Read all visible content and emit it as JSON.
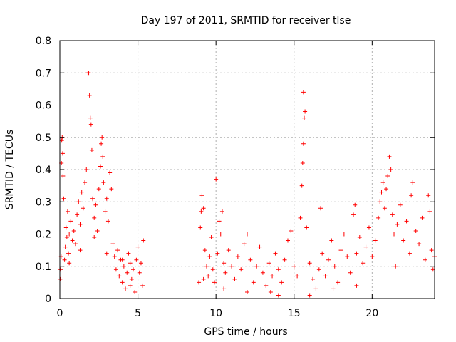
{
  "chart_data": {
    "type": "scatter",
    "title": "Day 197 of 2011, SRMTID for receiver tlse",
    "xlabel": "GPS time / hours",
    "ylabel": "SRMTID / TECUs",
    "xlim": [
      0,
      24
    ],
    "ylim": [
      0,
      0.8
    ],
    "x_ticks": [
      0,
      5,
      10,
      15,
      20
    ],
    "y_ticks": [
      0,
      0.1,
      0.2,
      0.3,
      0.4,
      0.5,
      0.6,
      0.7,
      0.8
    ],
    "x_tick_labels": [
      "0",
      "5",
      "10",
      "15",
      "20"
    ],
    "y_tick_labels": [
      "0",
      "0.1",
      "0.2",
      "0.3",
      "0.4",
      "0.5",
      "0.6",
      "0.7",
      "0.8"
    ],
    "grid": true,
    "marker": "+",
    "color": "#ff0000",
    "series": [
      {
        "name": "SRMTID",
        "points": [
          [
            0.02,
            0.06
          ],
          [
            0.05,
            0.09
          ],
          [
            0.08,
            0.13
          ],
          [
            0.1,
            0.42
          ],
          [
            0.12,
            0.49
          ],
          [
            0.15,
            0.5
          ],
          [
            0.18,
            0.45
          ],
          [
            0.2,
            0.38
          ],
          [
            0.25,
            0.31
          ],
          [
            0.3,
            0.12
          ],
          [
            0.35,
            0.16
          ],
          [
            0.4,
            0.22
          ],
          [
            0.45,
            0.19
          ],
          [
            0.5,
            0.27
          ],
          [
            0.55,
            0.14
          ],
          [
            0.6,
            0.2
          ],
          [
            0.7,
            0.24
          ],
          [
            0.8,
            0.18
          ],
          [
            0.9,
            0.21
          ],
          [
            1.0,
            0.17
          ],
          [
            1.1,
            0.26
          ],
          [
            1.2,
            0.3
          ],
          [
            1.3,
            0.23
          ],
          [
            1.4,
            0.33
          ],
          [
            1.5,
            0.28
          ],
          [
            1.6,
            0.36
          ],
          [
            1.7,
            0.4
          ],
          [
            1.8,
            0.7
          ],
          [
            1.85,
            0.7
          ],
          [
            1.9,
            0.63
          ],
          [
            1.95,
            0.56
          ],
          [
            2.0,
            0.54
          ],
          [
            2.05,
            0.46
          ],
          [
            2.1,
            0.31
          ],
          [
            2.2,
            0.25
          ],
          [
            2.3,
            0.29
          ],
          [
            2.4,
            0.21
          ],
          [
            2.5,
            0.34
          ],
          [
            2.6,
            0.41
          ],
          [
            2.65,
            0.48
          ],
          [
            2.7,
            0.5
          ],
          [
            2.75,
            0.44
          ],
          [
            2.8,
            0.36
          ],
          [
            2.9,
            0.27
          ],
          [
            3.0,
            0.31
          ],
          [
            3.1,
            0.24
          ],
          [
            3.2,
            0.39
          ],
          [
            3.3,
            0.34
          ],
          [
            3.4,
            0.17
          ],
          [
            3.5,
            0.13
          ],
          [
            3.6,
            0.09
          ],
          [
            3.7,
            0.15
          ],
          [
            3.8,
            0.07
          ],
          [
            3.9,
            0.12
          ],
          [
            4.0,
            0.05
          ],
          [
            4.1,
            0.1
          ],
          [
            4.2,
            0.03
          ],
          [
            4.3,
            0.08
          ],
          [
            4.4,
            0.14
          ],
          [
            4.5,
            0.11
          ],
          [
            4.6,
            0.06
          ],
          [
            4.7,
            0.09
          ],
          [
            4.8,
            0.02
          ],
          [
            4.9,
            0.12
          ],
          [
            5.0,
            0.16
          ],
          [
            5.1,
            0.08
          ],
          [
            5.2,
            0.11
          ],
          [
            5.3,
            0.04
          ],
          [
            5.35,
            0.18
          ],
          [
            0.6,
            0.11
          ],
          [
            1.3,
            0.15
          ],
          [
            2.2,
            0.19
          ],
          [
            3.0,
            0.14
          ],
          [
            4.0,
            0.12
          ],
          [
            4.5,
            0.04
          ],
          [
            8.9,
            0.05
          ],
          [
            9.0,
            0.22
          ],
          [
            9.05,
            0.27
          ],
          [
            9.1,
            0.32
          ],
          [
            9.2,
            0.28
          ],
          [
            9.3,
            0.15
          ],
          [
            9.4,
            0.1
          ],
          [
            9.5,
            0.07
          ],
          [
            9.6,
            0.13
          ],
          [
            9.7,
            0.19
          ],
          [
            9.8,
            0.09
          ],
          [
            9.9,
            0.05
          ],
          [
            10.0,
            0.37
          ],
          [
            10.1,
            0.14
          ],
          [
            10.2,
            0.24
          ],
          [
            10.3,
            0.2
          ],
          [
            10.4,
            0.27
          ],
          [
            10.5,
            0.11
          ],
          [
            10.6,
            0.08
          ],
          [
            10.8,
            0.15
          ],
          [
            11.0,
            0.1
          ],
          [
            11.2,
            0.06
          ],
          [
            11.4,
            0.13
          ],
          [
            11.6,
            0.09
          ],
          [
            11.8,
            0.17
          ],
          [
            12.0,
            0.2
          ],
          [
            12.2,
            0.12
          ],
          [
            12.4,
            0.05
          ],
          [
            12.6,
            0.1
          ],
          [
            12.8,
            0.16
          ],
          [
            13.0,
            0.08
          ],
          [
            13.2,
            0.04
          ],
          [
            13.4,
            0.11
          ],
          [
            13.6,
            0.07
          ],
          [
            13.8,
            0.14
          ],
          [
            14.0,
            0.09
          ],
          [
            14.2,
            0.05
          ],
          [
            14.4,
            0.12
          ],
          [
            14.6,
            0.18
          ],
          [
            14.8,
            0.21
          ],
          [
            15.0,
            0.1
          ],
          [
            15.2,
            0.07
          ],
          [
            15.4,
            0.25
          ],
          [
            15.5,
            0.35
          ],
          [
            15.55,
            0.42
          ],
          [
            15.6,
            0.48
          ],
          [
            15.65,
            0.56
          ],
          [
            15.7,
            0.58
          ],
          [
            15.6,
            0.64
          ],
          [
            15.8,
            0.22
          ],
          [
            16.0,
            0.11
          ],
          [
            16.2,
            0.06
          ],
          [
            16.4,
            0.03
          ],
          [
            16.6,
            0.09
          ],
          [
            16.7,
            0.28
          ],
          [
            16.8,
            0.14
          ],
          [
            17.0,
            0.07
          ],
          [
            17.2,
            0.12
          ],
          [
            17.4,
            0.18
          ],
          [
            17.6,
            0.1
          ],
          [
            17.8,
            0.05
          ],
          [
            18.0,
            0.15
          ],
          [
            18.2,
            0.2
          ],
          [
            18.4,
            0.13
          ],
          [
            18.6,
            0.08
          ],
          [
            18.8,
            0.26
          ],
          [
            18.9,
            0.29
          ],
          [
            19.0,
            0.14
          ],
          [
            19.2,
            0.19
          ],
          [
            19.4,
            0.11
          ],
          [
            19.6,
            0.16
          ],
          [
            19.8,
            0.22
          ],
          [
            20.0,
            0.13
          ],
          [
            20.2,
            0.18
          ],
          [
            20.4,
            0.25
          ],
          [
            20.5,
            0.3
          ],
          [
            20.6,
            0.33
          ],
          [
            20.7,
            0.36
          ],
          [
            20.8,
            0.28
          ],
          [
            20.9,
            0.34
          ],
          [
            21.0,
            0.38
          ],
          [
            21.1,
            0.44
          ],
          [
            21.2,
            0.4
          ],
          [
            21.3,
            0.26
          ],
          [
            21.4,
            0.2
          ],
          [
            21.5,
            0.1
          ],
          [
            21.6,
            0.23
          ],
          [
            21.8,
            0.29
          ],
          [
            22.0,
            0.18
          ],
          [
            22.2,
            0.24
          ],
          [
            22.4,
            0.14
          ],
          [
            22.5,
            0.32
          ],
          [
            22.6,
            0.36
          ],
          [
            22.8,
            0.21
          ],
          [
            23.0,
            0.17
          ],
          [
            23.2,
            0.25
          ],
          [
            23.4,
            0.12
          ],
          [
            23.6,
            0.32
          ],
          [
            23.7,
            0.27
          ],
          [
            23.8,
            0.15
          ],
          [
            23.9,
            0.09
          ],
          [
            24.0,
            0.13
          ],
          [
            9.2,
            0.06
          ],
          [
            10.5,
            0.03
          ],
          [
            12.0,
            0.02
          ],
          [
            13.5,
            0.02
          ],
          [
            14.0,
            0.01
          ],
          [
            16.0,
            0.01
          ],
          [
            17.5,
            0.03
          ],
          [
            19.0,
            0.04
          ]
        ]
      }
    ]
  }
}
